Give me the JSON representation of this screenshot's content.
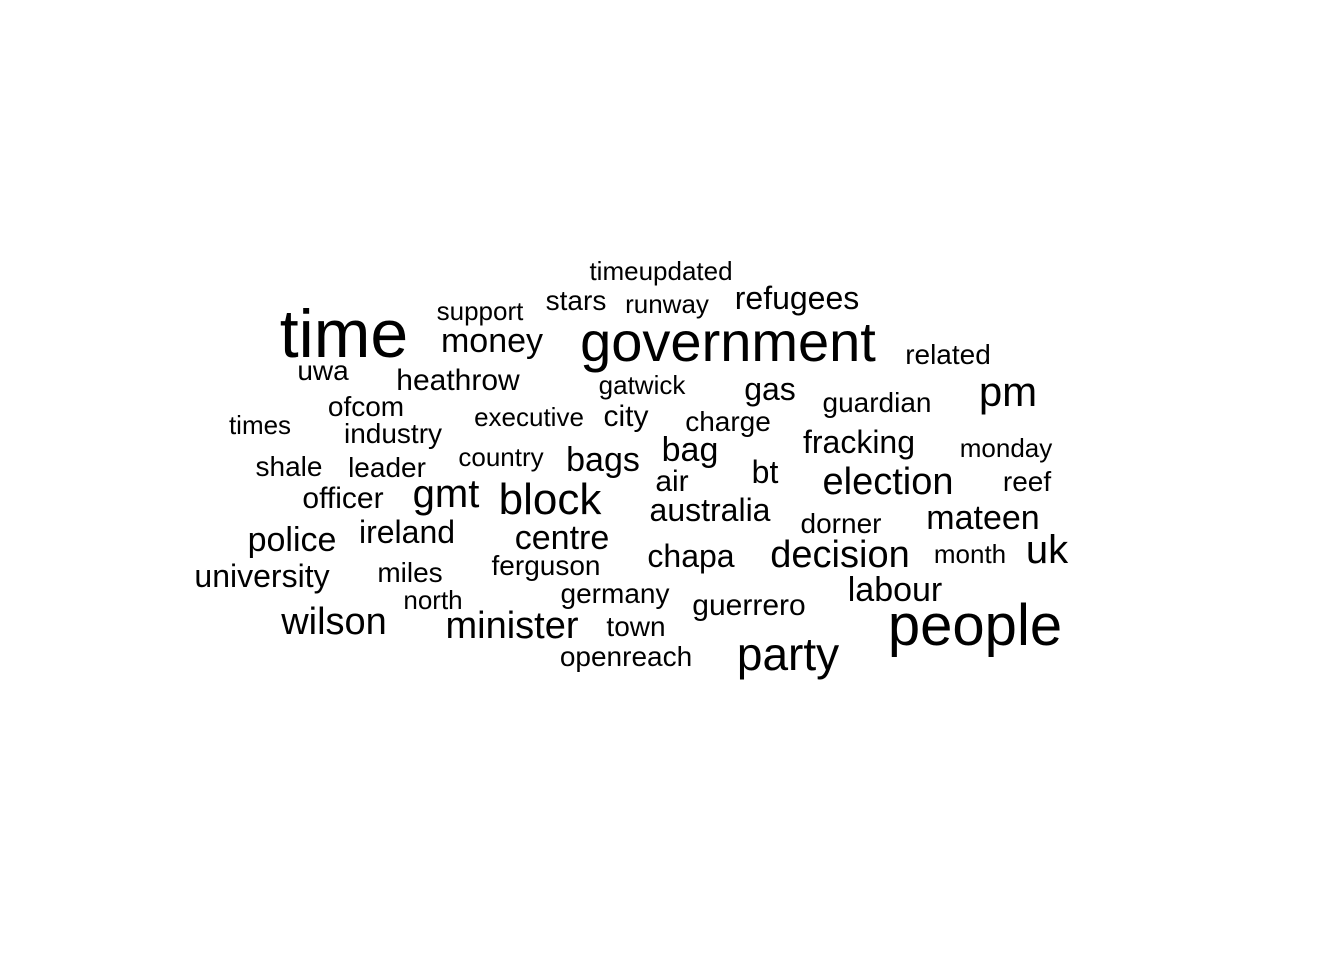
{
  "color": "#000000",
  "background": "#ffffff",
  "words": [
    {
      "text": "time",
      "weight": 10
    },
    {
      "text": "government",
      "weight": 9
    },
    {
      "text": "people",
      "weight": 9
    },
    {
      "text": "party",
      "weight": 7
    },
    {
      "text": "pm",
      "weight": 6
    },
    {
      "text": "block",
      "weight": 6
    },
    {
      "text": "gmt",
      "weight": 6
    },
    {
      "text": "minister",
      "weight": 5
    },
    {
      "text": "wilson",
      "weight": 5
    },
    {
      "text": "decision",
      "weight": 5
    },
    {
      "text": "election",
      "weight": 5
    },
    {
      "text": "uk",
      "weight": 5
    },
    {
      "text": "money",
      "weight": 4
    },
    {
      "text": "police",
      "weight": 4
    },
    {
      "text": "bag",
      "weight": 4
    },
    {
      "text": "bags",
      "weight": 4
    },
    {
      "text": "centre",
      "weight": 4
    },
    {
      "text": "labour",
      "weight": 4
    },
    {
      "text": "mateen",
      "weight": 4
    },
    {
      "text": "refugees",
      "weight": 4
    },
    {
      "text": "fracking",
      "weight": 4
    },
    {
      "text": "university",
      "weight": 4
    },
    {
      "text": "australia",
      "weight": 4
    },
    {
      "text": "heathrow",
      "weight": 4
    },
    {
      "text": "ireland",
      "weight": 4
    },
    {
      "text": "chapa",
      "weight": 4
    },
    {
      "text": "guerrero",
      "weight": 4
    },
    {
      "text": "gas",
      "weight": 4
    },
    {
      "text": "bt",
      "weight": 4
    },
    {
      "text": "officer",
      "weight": 3
    },
    {
      "text": "air",
      "weight": 3
    },
    {
      "text": "city",
      "weight": 3
    },
    {
      "text": "guardian",
      "weight": 3
    },
    {
      "text": "related",
      "weight": 3
    },
    {
      "text": "charge",
      "weight": 3
    },
    {
      "text": "stars",
      "weight": 3
    },
    {
      "text": "industry",
      "weight": 3
    },
    {
      "text": "ferguson",
      "weight": 3
    },
    {
      "text": "germany",
      "weight": 3
    },
    {
      "text": "town",
      "weight": 3
    },
    {
      "text": "openreach",
      "weight": 3
    },
    {
      "text": "miles",
      "weight": 3
    },
    {
      "text": "leader",
      "weight": 3
    },
    {
      "text": "shale",
      "weight": 3
    },
    {
      "text": "dorner",
      "weight": 3
    },
    {
      "text": "reef",
      "weight": 3
    },
    {
      "text": "support",
      "weight": 3
    },
    {
      "text": "ofcom",
      "weight": 3
    },
    {
      "text": "times",
      "weight": 3
    },
    {
      "text": "uwa",
      "weight": 3
    },
    {
      "text": "monday",
      "weight": 2
    },
    {
      "text": "month",
      "weight": 2
    },
    {
      "text": "runway",
      "weight": 2
    },
    {
      "text": "timeupdated",
      "weight": 2
    },
    {
      "text": "gatwick",
      "weight": 2
    },
    {
      "text": "executive",
      "weight": 2
    },
    {
      "text": "country",
      "weight": 2
    },
    {
      "text": "north",
      "weight": 2
    }
  ]
}
